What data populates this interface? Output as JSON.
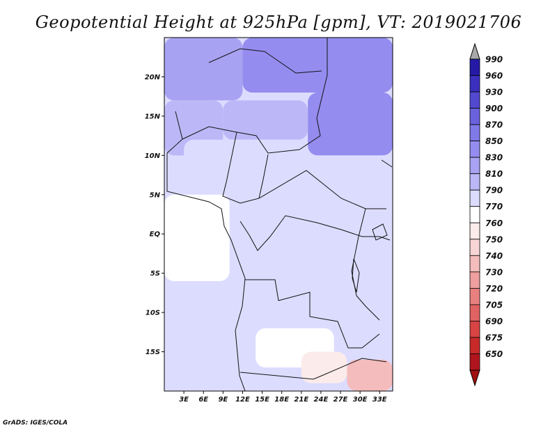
{
  "chart_data": {
    "type": "heatmap",
    "title": "Geopotential Height at 925hPa [gpm], VT: 2019021706",
    "x_ticks": [
      "3E",
      "6E",
      "9E",
      "12E",
      "15E",
      "18E",
      "21E",
      "24E",
      "27E",
      "30E",
      "33E"
    ],
    "x_tick_values": [
      3,
      6,
      9,
      12,
      15,
      18,
      21,
      24,
      27,
      30,
      33
    ],
    "y_ticks": [
      "20N",
      "15N",
      "10N",
      "5N",
      "EQ",
      "5S",
      "10S",
      "15S"
    ],
    "y_tick_values": [
      20,
      15,
      10,
      5,
      0,
      -5,
      -10,
      -15
    ],
    "xlim": [
      0,
      35
    ],
    "ylim": [
      -20,
      25
    ],
    "colorbar": {
      "levels": [
        "650",
        "675",
        "690",
        "705",
        "720",
        "730",
        "740",
        "750",
        "760",
        "770",
        "790",
        "810",
        "830",
        "850",
        "870",
        "900",
        "930",
        "960",
        "990"
      ],
      "colors": [
        "#b0151d",
        "#c82a2a",
        "#d84343",
        "#e06262",
        "#e88080",
        "#ef9f9f",
        "#f4bcbc",
        "#f8d6d6",
        "#fbebeb",
        "#ffffff",
        "#dcdcff",
        "#bcb8f7",
        "#a8a2f2",
        "#948def",
        "#8079e8",
        "#6a62dd",
        "#5249d1",
        "#3a2fbf",
        "#241aa6"
      ],
      "below_color": "#a01010",
      "above_color": "#a8a8a8"
    },
    "regions": [
      {
        "value": 865,
        "lon": [
          12,
          35
        ],
        "lat": [
          18,
          25
        ]
      },
      {
        "value": 850,
        "lon": [
          22,
          35
        ],
        "lat": [
          10,
          18
        ]
      },
      {
        "value": 835,
        "lon": [
          0,
          12
        ],
        "lat": [
          17,
          25
        ]
      },
      {
        "value": 825,
        "lon": [
          0,
          9
        ],
        "lat": [
          10,
          17
        ]
      },
      {
        "value": 815,
        "lon": [
          9,
          22
        ],
        "lat": [
          12,
          17
        ]
      },
      {
        "value": 805,
        "lon": [
          3,
          22
        ],
        "lat": [
          4,
          12
        ]
      },
      {
        "value": 800,
        "lon": [
          22,
          35
        ],
        "lat": [
          1,
          10
        ]
      },
      {
        "value": 780,
        "lon": [
          0,
          10
        ],
        "lat": [
          -6,
          5
        ]
      },
      {
        "value": 800,
        "lon": [
          0,
          13
        ],
        "lat": [
          -20,
          -6
        ]
      },
      {
        "value": 795,
        "lon": [
          13,
          24
        ],
        "lat": [
          -12,
          2
        ]
      },
      {
        "value": 790,
        "lon": [
          24,
          35
        ],
        "lat": [
          -16,
          1
        ]
      },
      {
        "value": 770,
        "lon": [
          14,
          26
        ],
        "lat": [
          -17,
          -12
        ]
      },
      {
        "value": 765,
        "lon": [
          21,
          28
        ],
        "lat": [
          -19,
          -15
        ]
      },
      {
        "value": 745,
        "lon": [
          28,
          35
        ],
        "lat": [
          -20,
          -16
        ]
      }
    ]
  },
  "credit": "GrADS: IGES/COLA"
}
